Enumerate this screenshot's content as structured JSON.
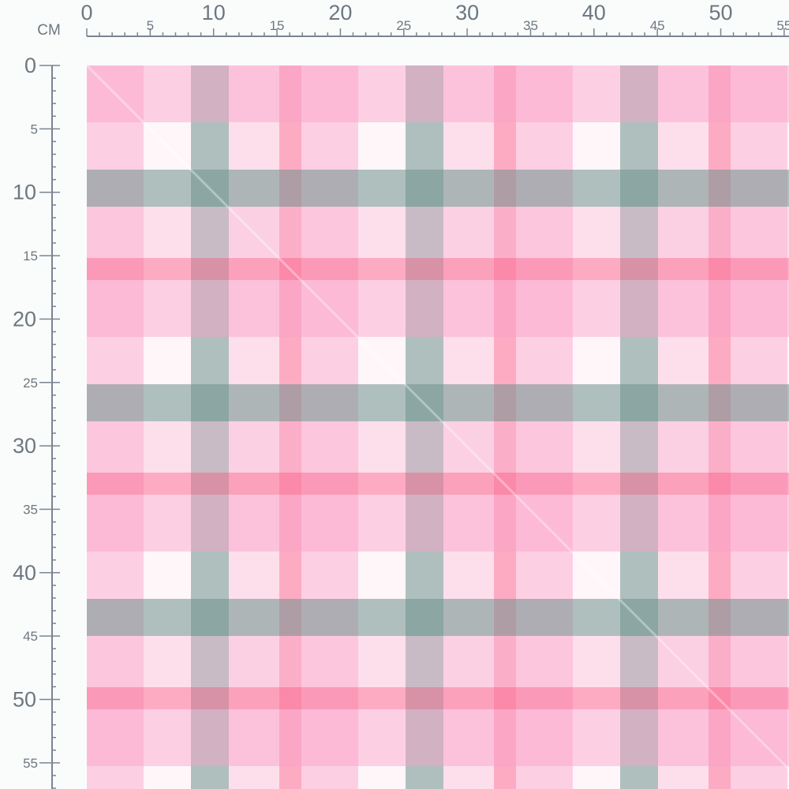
{
  "ruler": {
    "unit": "CM",
    "top": [
      0,
      5,
      10,
      15,
      20,
      25,
      30,
      35,
      40,
      45,
      50,
      55
    ],
    "left": [
      0,
      5,
      10,
      15,
      20,
      25,
      30,
      35,
      40,
      45,
      50,
      55
    ]
  }
}
